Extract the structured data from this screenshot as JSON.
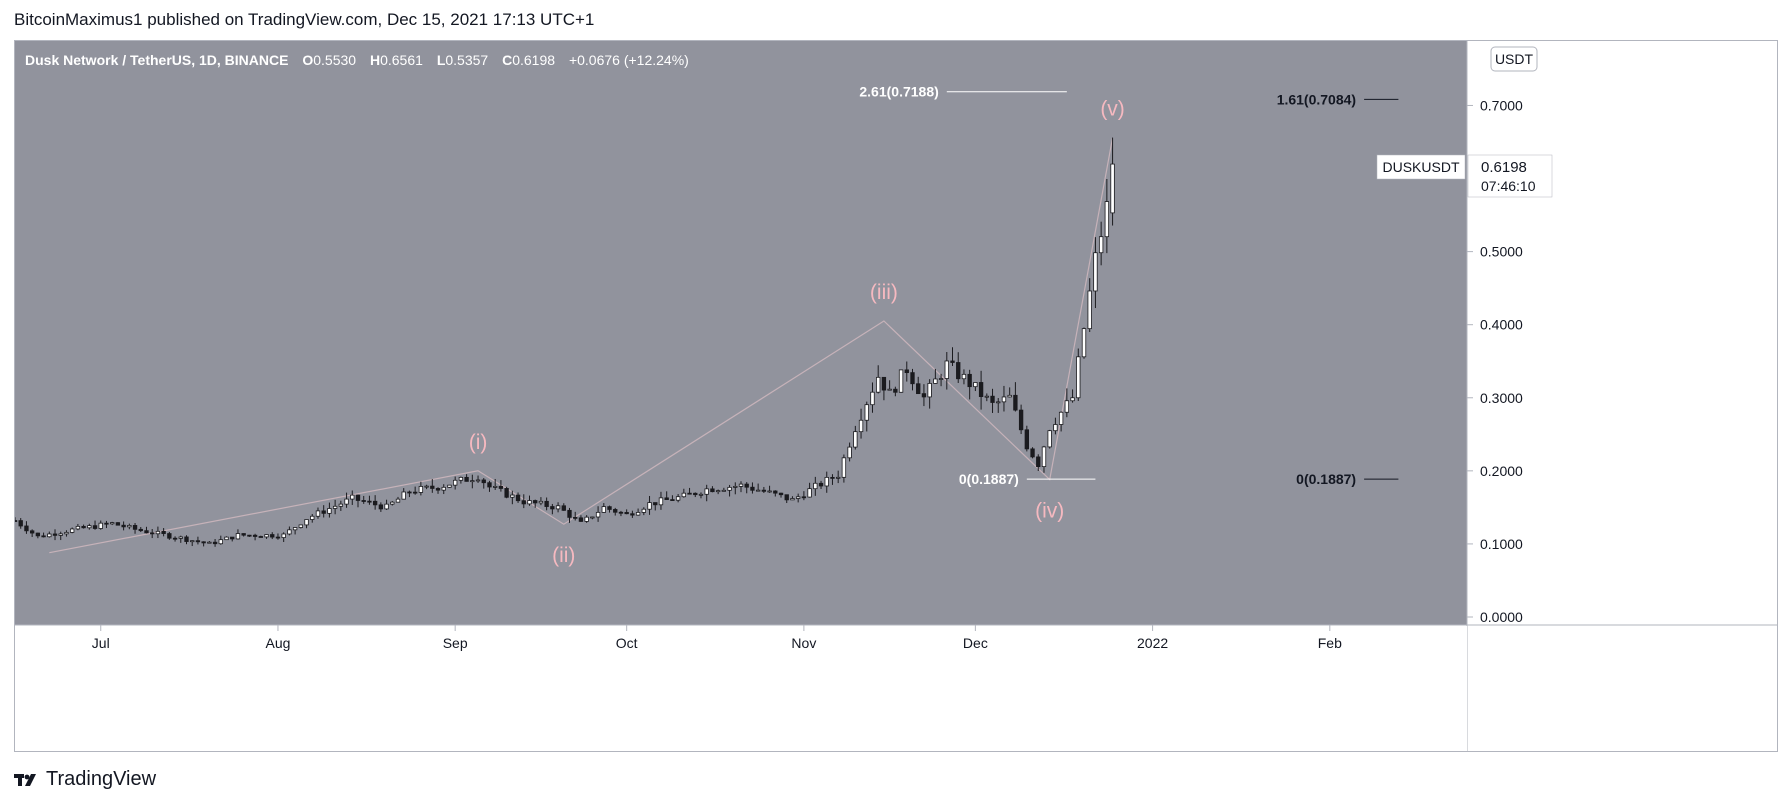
{
  "publish_line": "BitcoinMaximus1 published on TradingView.com, Dec 15, 2021 17:13 UTC+1",
  "header": {
    "symbol_desc": "Dusk Network / TetherUS, 1D, BINANCE",
    "o_label": "O",
    "o_value": "0.5530",
    "h_label": "H",
    "h_value": "0.6561",
    "l_label": "L",
    "l_value": "0.5357",
    "c_label": "C",
    "c_value": "0.6198",
    "change": "+0.0676 (+12.24%)"
  },
  "currency_badge": "USDT",
  "price_tag": {
    "symbol": "DUSKUSDT",
    "price": "0.6198",
    "countdown": "07:46:10"
  },
  "brand": "TradingView",
  "colors": {
    "pane_bg": "#91939d",
    "candle_up": "#ffffff",
    "candle_down": "#1b1b1f",
    "wave_label": "#f6b9c0",
    "wave_line": "#c6b2b9",
    "axis_text": "#131722",
    "fib_text": "#ffffff"
  },
  "chart_data": {
    "type": "candlestick",
    "title": "Dusk Network / TetherUS, 1D, BINANCE",
    "ylim": [
      0,
      0.78
    ],
    "y_ticks": [
      {
        "value": 0.7,
        "label": "0.7000"
      },
      {
        "value": 0.5,
        "label": "0.5000"
      },
      {
        "value": 0.4,
        "label": "0.4000"
      },
      {
        "value": 0.3,
        "label": "0.3000"
      },
      {
        "value": 0.2,
        "label": "0.2000"
      },
      {
        "value": 0.1,
        "label": "0.1000"
      },
      {
        "value": 0.0,
        "label": "0.0000"
      }
    ],
    "x_ticks": [
      {
        "day": 16,
        "label": "Jul"
      },
      {
        "day": 47,
        "label": "Aug"
      },
      {
        "day": 78,
        "label": "Sep"
      },
      {
        "day": 108,
        "label": "Oct"
      },
      {
        "day": 139,
        "label": "Nov"
      },
      {
        "day": 169,
        "label": "Dec"
      },
      {
        "day": 200,
        "label": "2022"
      },
      {
        "day": 231,
        "label": "Feb"
      }
    ],
    "x_range_days": [
      1,
      255
    ],
    "candle_anchors": [
      [
        1,
        0.132
      ],
      [
        5,
        0.11
      ],
      [
        10,
        0.118
      ],
      [
        18,
        0.128
      ],
      [
        22,
        0.12
      ],
      [
        30,
        0.108
      ],
      [
        35,
        0.1
      ],
      [
        40,
        0.112
      ],
      [
        48,
        0.112
      ],
      [
        52,
        0.135
      ],
      [
        60,
        0.162
      ],
      [
        66,
        0.15
      ],
      [
        70,
        0.172
      ],
      [
        75,
        0.178
      ],
      [
        82,
        0.193
      ],
      [
        84,
        0.178
      ],
      [
        90,
        0.158
      ],
      [
        96,
        0.15
      ],
      [
        97,
        0.145
      ],
      [
        100,
        0.128
      ],
      [
        104,
        0.15
      ],
      [
        108,
        0.14
      ],
      [
        112,
        0.155
      ],
      [
        118,
        0.165
      ],
      [
        122,
        0.175
      ],
      [
        128,
        0.18
      ],
      [
        132,
        0.172
      ],
      [
        137,
        0.16
      ],
      [
        141,
        0.178
      ],
      [
        145,
        0.195
      ],
      [
        148,
        0.26
      ],
      [
        152,
        0.33
      ],
      [
        154,
        0.305
      ],
      [
        157,
        0.34
      ],
      [
        160,
        0.3
      ],
      [
        164,
        0.345
      ],
      [
        168,
        0.32
      ],
      [
        172,
        0.29
      ],
      [
        175,
        0.3
      ],
      [
        178,
        0.235
      ],
      [
        180,
        0.21
      ],
      [
        182,
        0.26
      ],
      [
        184,
        0.28
      ],
      [
        186,
        0.3
      ],
      [
        188,
        0.395
      ],
      [
        190,
        0.49
      ],
      [
        192,
        0.56
      ],
      [
        193,
        0.62
      ]
    ],
    "last_candle": {
      "day": 193,
      "open": 0.553,
      "high": 0.6561,
      "low": 0.5357,
      "close": 0.6198
    },
    "wave_points": [
      {
        "day": 7,
        "value": 0.088,
        "label": ""
      },
      {
        "day": 82,
        "value": 0.2,
        "label": "(i)"
      },
      {
        "day": 97,
        "value": 0.127,
        "label": "(ii)"
      },
      {
        "day": 153,
        "value": 0.405,
        "label": "(iii)"
      },
      {
        "day": 182,
        "value": 0.188,
        "label": "(iv)"
      },
      {
        "day": 193,
        "value": 0.656,
        "label": "(v)"
      }
    ],
    "fib_levels": [
      {
        "label": "2.61(0.7188)",
        "value": 0.7188,
        "day_start": 164,
        "day_end": 185
      },
      {
        "label": "0(0.1887)",
        "value": 0.1887,
        "day_start": 178,
        "day_end": 190
      },
      {
        "label": "1.61(0.7084)",
        "value": 0.7084,
        "day_start": 237,
        "day_end": 243
      },
      {
        "label": "0(0.1887)",
        "value": 0.1887,
        "day_start": 237,
        "day_end": 243
      }
    ]
  }
}
